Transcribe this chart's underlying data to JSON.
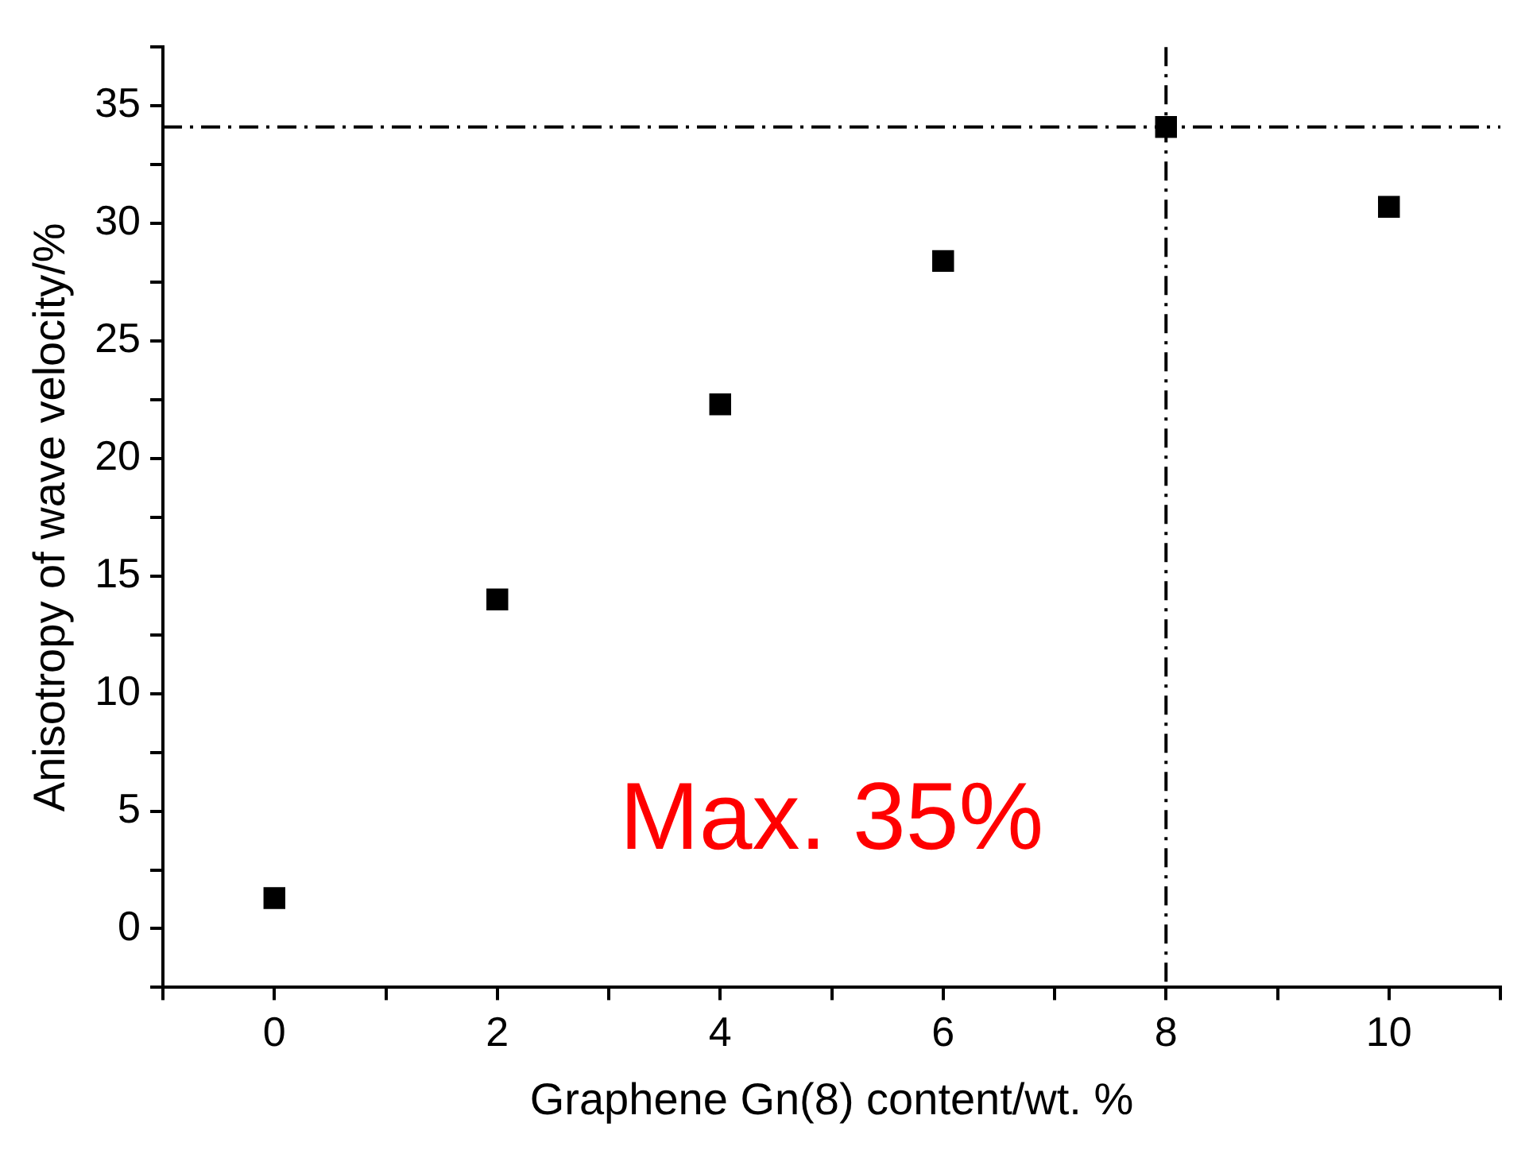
{
  "chart_data": {
    "type": "scatter",
    "xlabel": "Graphene Gn(8) content/wt. %",
    "ylabel": "Anisotropy of wave velocity/%",
    "x": [
      0,
      2,
      4,
      6,
      8,
      10
    ],
    "series": [
      {
        "color": "#000000",
        "values": [
          1.3,
          14.0,
          22.3,
          28.4,
          34.1,
          30.7
        ]
      }
    ],
    "marker": "square",
    "grid": false,
    "legend": false,
    "xlim": [
      -1,
      11
    ],
    "xticks": [
      {
        "value": -1,
        "label": null
      },
      0,
      {
        "value": 1,
        "label": null
      },
      2,
      {
        "value": 3,
        "label": null
      },
      4,
      {
        "value": 5,
        "label": null
      },
      6,
      {
        "value": 7,
        "label": null
      },
      8,
      {
        "value": 9,
        "label": null
      },
      10,
      {
        "value": 11,
        "label": null
      }
    ],
    "ylim": [
      -2.5,
      37.5
    ],
    "yticks": [
      {
        "value": -2.5,
        "label": null
      },
      0,
      {
        "value": 2.5,
        "label": null
      },
      5,
      {
        "value": 7.5,
        "label": null
      },
      10,
      {
        "value": 12.5,
        "label": null
      },
      15,
      {
        "value": 17.5,
        "label": null
      },
      20,
      {
        "value": 22.5,
        "label": null
      },
      25,
      {
        "value": 27.5,
        "label": null
      },
      30,
      {
        "value": 32.5,
        "label": null
      },
      35,
      {
        "value": 37.5,
        "label": null
      }
    ],
    "ref_lines": [
      {
        "axis": "y",
        "value": 34.1,
        "color": "#000000",
        "line_style": "dashdot"
      },
      {
        "axis": "x",
        "value": 8,
        "color": "#000000",
        "line_style": "dashdot"
      }
    ],
    "annotations": [
      "Max. 35%"
    ]
  }
}
